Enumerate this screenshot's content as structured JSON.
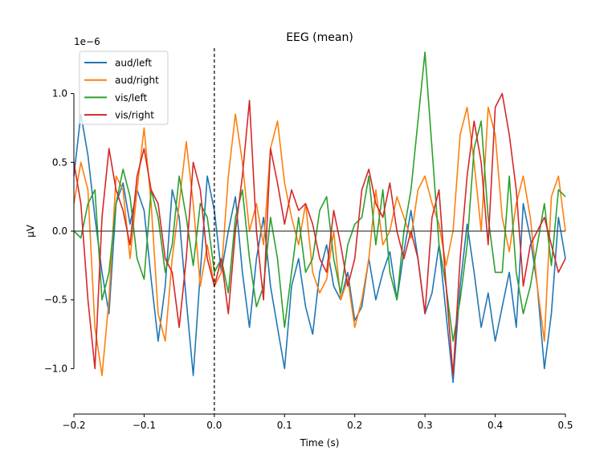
{
  "chart_data": {
    "type": "line",
    "title": "EEG (mean)",
    "xlabel": "Time (s)",
    "ylabel": "µV",
    "y_offset_label": "1e−6",
    "xlim": [
      -0.2,
      0.5
    ],
    "ylim": [
      -1.33,
      1.33
    ],
    "xticks": [
      "−0.2",
      "−0.1",
      "0.0",
      "0.1",
      "0.2",
      "0.3",
      "0.4",
      "0.5"
    ],
    "xtick_values": [
      -0.2,
      -0.1,
      0.0,
      0.1,
      0.2,
      0.3,
      0.4,
      0.5
    ],
    "yticks": [
      "−1.0",
      "−0.5",
      "0.0",
      "0.5",
      "1.0"
    ],
    "ytick_values": [
      -1.0,
      -0.5,
      0.0,
      0.5,
      1.0
    ],
    "grid": false,
    "legend_position": "top-left",
    "zero_line": true,
    "event_marker_x": 0.0,
    "x": [
      -0.2,
      -0.19,
      -0.18,
      -0.17,
      -0.16,
      -0.15,
      -0.14,
      -0.13,
      -0.12,
      -0.11,
      -0.1,
      -0.09,
      -0.08,
      -0.07,
      -0.06,
      -0.05,
      -0.04,
      -0.03,
      -0.02,
      -0.01,
      0.0,
      0.01,
      0.02,
      0.03,
      0.04,
      0.05,
      0.06,
      0.07,
      0.08,
      0.09,
      0.1,
      0.11,
      0.12,
      0.13,
      0.14,
      0.15,
      0.16,
      0.17,
      0.18,
      0.19,
      0.2,
      0.21,
      0.22,
      0.23,
      0.24,
      0.25,
      0.26,
      0.27,
      0.28,
      0.29,
      0.3,
      0.31,
      0.32,
      0.33,
      0.34,
      0.35,
      0.36,
      0.37,
      0.38,
      0.39,
      0.4,
      0.41,
      0.42,
      0.43,
      0.44,
      0.45,
      0.46,
      0.47,
      0.48,
      0.49,
      0.5
    ],
    "series": [
      {
        "name": "aud/left",
        "color": "#1f77b4",
        "values": [
          0.4,
          0.85,
          0.55,
          0.1,
          -0.3,
          -0.6,
          0.2,
          0.35,
          0.05,
          0.3,
          0.15,
          -0.35,
          -0.8,
          -0.4,
          0.3,
          0.1,
          -0.5,
          -1.05,
          -0.3,
          0.4,
          0.15,
          -0.3,
          0.0,
          0.25,
          -0.3,
          -0.7,
          -0.2,
          0.1,
          -0.4,
          -0.7,
          -1.0,
          -0.4,
          -0.2,
          -0.55,
          -0.75,
          -0.3,
          -0.1,
          -0.4,
          -0.5,
          -0.3,
          -0.65,
          -0.55,
          -0.2,
          -0.5,
          -0.3,
          -0.15,
          -0.5,
          -0.15,
          0.15,
          -0.2,
          -0.6,
          -0.45,
          -0.1,
          -0.6,
          -1.1,
          -0.4,
          0.05,
          -0.3,
          -0.7,
          -0.45,
          -0.8,
          -0.55,
          -0.3,
          -0.7,
          0.2,
          -0.05,
          -0.4,
          -1.0,
          -0.6,
          0.1,
          -0.2
        ]
      },
      {
        "name": "aud/right",
        "color": "#ff7f0e",
        "values": [
          0.2,
          0.5,
          0.3,
          -0.7,
          -1.05,
          -0.5,
          0.4,
          0.3,
          -0.2,
          0.3,
          0.75,
          0.2,
          -0.6,
          -0.8,
          -0.2,
          0.2,
          0.65,
          0.2,
          -0.4,
          -0.1,
          -0.4,
          -0.3,
          0.4,
          0.85,
          0.5,
          0.0,
          0.2,
          -0.1,
          0.6,
          0.8,
          0.35,
          0.1,
          -0.1,
          0.2,
          -0.3,
          -0.45,
          -0.35,
          0.0,
          -0.5,
          -0.35,
          -0.7,
          -0.5,
          -0.2,
          0.3,
          -0.1,
          0.0,
          0.25,
          0.1,
          -0.05,
          0.3,
          0.4,
          0.2,
          0.05,
          -0.25,
          0.0,
          0.7,
          0.9,
          0.5,
          0.0,
          0.9,
          0.7,
          0.1,
          -0.15,
          0.2,
          0.4,
          0.1,
          -0.4,
          -0.8,
          0.25,
          0.4,
          0.0
        ]
      },
      {
        "name": "vis/left",
        "color": "#2ca02c",
        "values": [
          0.0,
          -0.05,
          0.2,
          0.3,
          -0.5,
          -0.3,
          0.2,
          0.45,
          0.25,
          -0.2,
          -0.35,
          0.3,
          0.1,
          -0.3,
          -0.1,
          0.4,
          0.1,
          -0.25,
          0.2,
          0.1,
          -0.3,
          -0.2,
          -0.45,
          0.1,
          0.3,
          -0.2,
          -0.55,
          -0.4,
          0.1,
          -0.2,
          -0.7,
          -0.3,
          0.1,
          -0.3,
          -0.2,
          0.15,
          0.25,
          -0.2,
          -0.45,
          -0.1,
          0.05,
          0.1,
          0.4,
          -0.1,
          0.3,
          -0.3,
          -0.5,
          0.0,
          0.3,
          0.8,
          1.3,
          0.6,
          -0.1,
          -0.4,
          -0.8,
          -0.5,
          -0.1,
          0.6,
          0.8,
          0.1,
          -0.3,
          -0.3,
          0.4,
          -0.3,
          -0.6,
          -0.4,
          -0.1,
          0.2,
          -0.25,
          0.3,
          0.25
        ]
      },
      {
        "name": "vis/right",
        "color": "#d62728",
        "values": [
          0.5,
          0.2,
          -0.5,
          -1.0,
          0.1,
          0.6,
          0.3,
          0.15,
          -0.1,
          0.4,
          0.6,
          0.3,
          0.2,
          -0.2,
          -0.3,
          -0.7,
          -0.2,
          0.5,
          0.3,
          -0.2,
          -0.4,
          -0.2,
          -0.6,
          0.0,
          0.4,
          0.95,
          0.0,
          -0.5,
          0.6,
          0.35,
          0.05,
          0.3,
          0.15,
          0.2,
          0.05,
          -0.2,
          -0.3,
          0.15,
          -0.1,
          -0.4,
          -0.2,
          0.3,
          0.45,
          0.2,
          0.1,
          0.35,
          0.0,
          -0.2,
          0.0,
          -0.2,
          -0.6,
          0.1,
          0.3,
          -0.4,
          -1.05,
          -0.2,
          0.4,
          0.8,
          0.5,
          -0.1,
          0.9,
          1.0,
          0.7,
          0.3,
          -0.4,
          -0.1,
          0.0,
          0.1,
          -0.1,
          -0.3,
          -0.2
        ]
      }
    ]
  }
}
